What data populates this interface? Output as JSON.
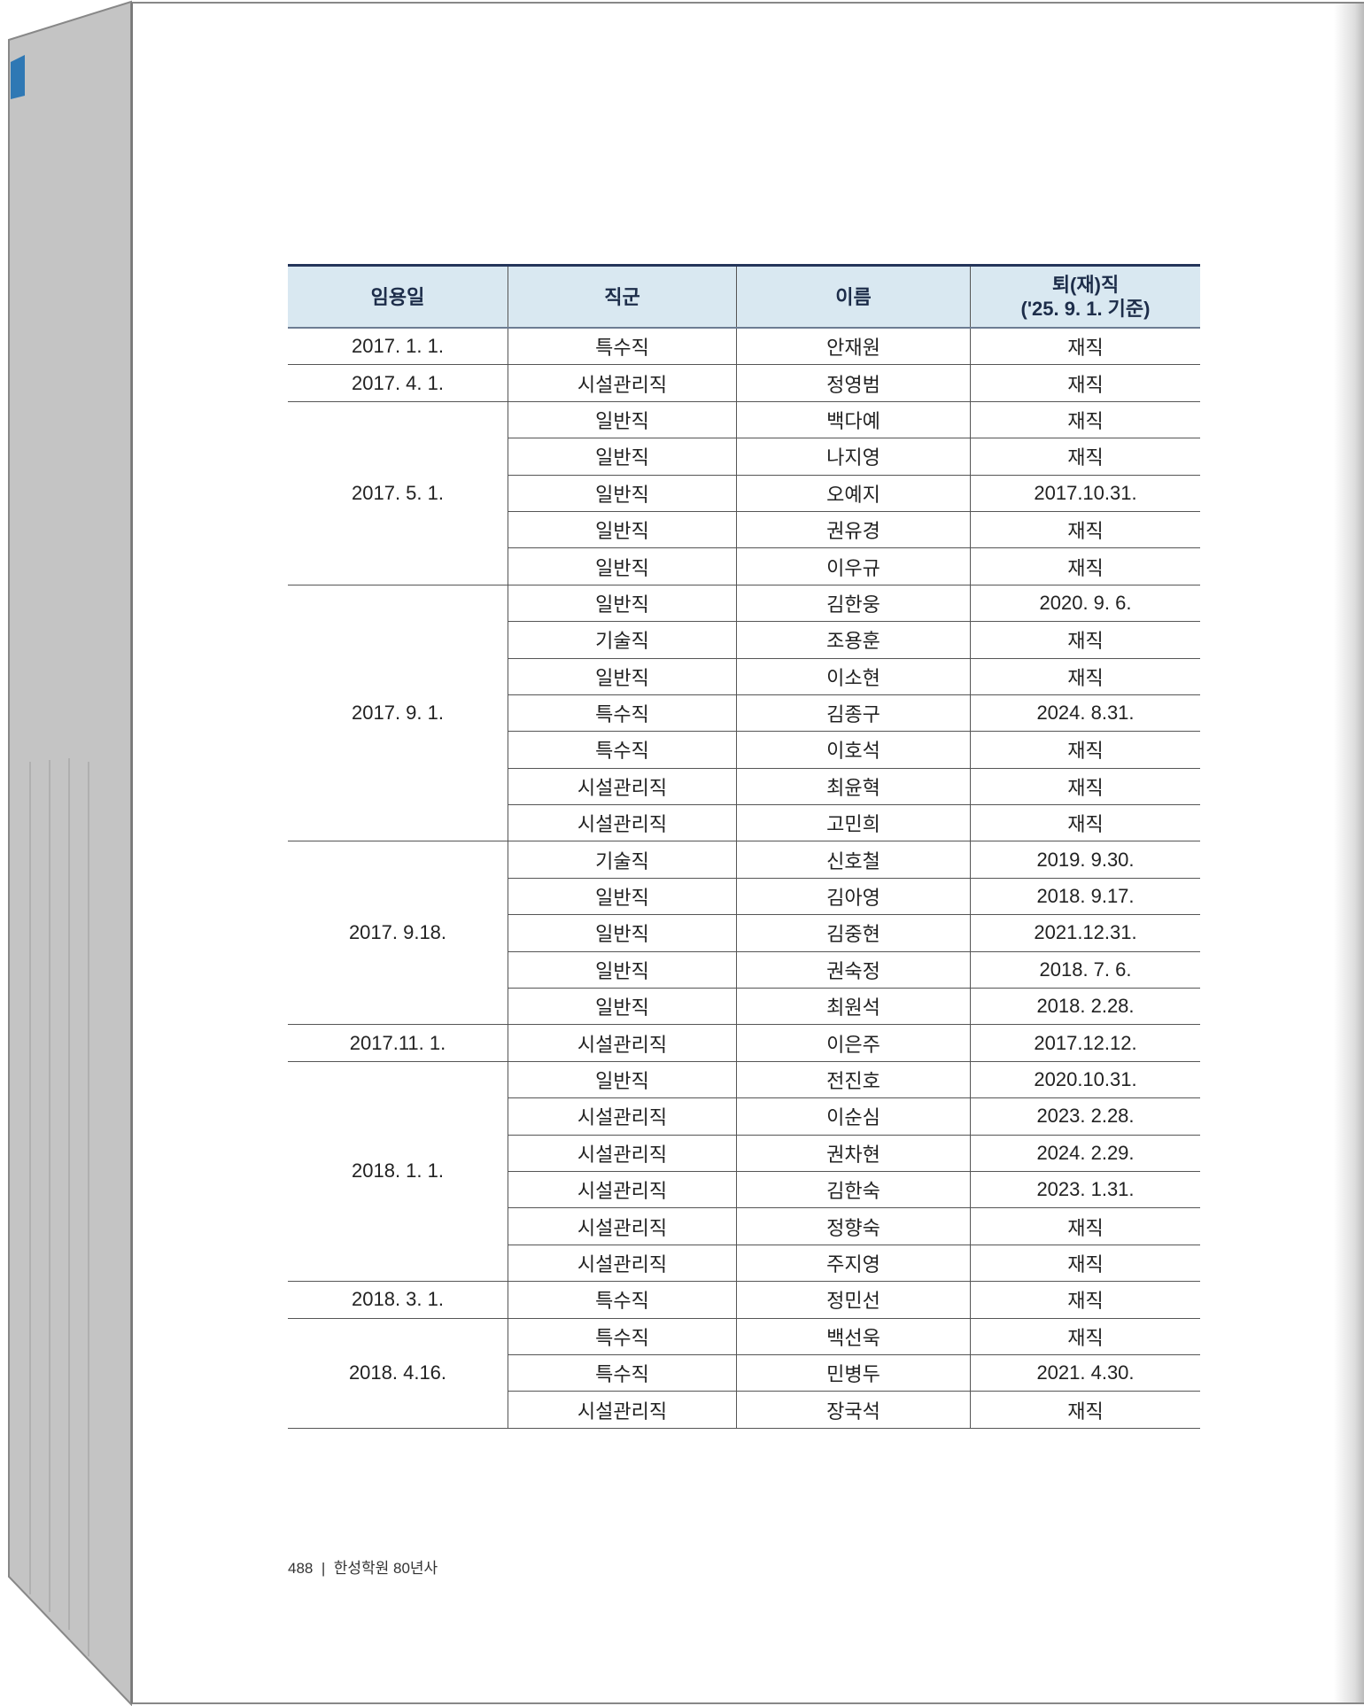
{
  "header": {
    "col1": "임용일",
    "col2": "직군",
    "col3": "이름",
    "col4_line1": "퇴(재)직",
    "col4_line2": "('25. 9. 1. 기준)"
  },
  "groups": [
    {
      "date": "2017. 1. 1.",
      "rows": [
        [
          "특수직",
          "안재원",
          "재직"
        ]
      ]
    },
    {
      "date": "2017. 4. 1.",
      "rows": [
        [
          "시설관리직",
          "정영범",
          "재직"
        ]
      ]
    },
    {
      "date": "2017. 5. 1.",
      "rows": [
        [
          "일반직",
          "백다예",
          "재직"
        ],
        [
          "일반직",
          "나지영",
          "재직"
        ],
        [
          "일반직",
          "오예지",
          "2017.10.31."
        ],
        [
          "일반직",
          "권유경",
          "재직"
        ],
        [
          "일반직",
          "이우규",
          "재직"
        ]
      ]
    },
    {
      "date": "2017. 9. 1.",
      "rows": [
        [
          "일반직",
          "김한웅",
          "2020. 9. 6."
        ],
        [
          "기술직",
          "조용훈",
          "재직"
        ],
        [
          "일반직",
          "이소현",
          "재직"
        ],
        [
          "특수직",
          "김종구",
          "2024. 8.31."
        ],
        [
          "특수직",
          "이호석",
          "재직"
        ],
        [
          "시설관리직",
          "최윤혁",
          "재직"
        ],
        [
          "시설관리직",
          "고민희",
          "재직"
        ]
      ]
    },
    {
      "date": "2017. 9.18.",
      "rows": [
        [
          "기술직",
          "신호철",
          "2019. 9.30."
        ],
        [
          "일반직",
          "김아영",
          "2018. 9.17."
        ],
        [
          "일반직",
          "김중현",
          "2021.12.31."
        ],
        [
          "일반직",
          "권숙정",
          "2018. 7. 6."
        ],
        [
          "일반직",
          "최원석",
          "2018. 2.28."
        ]
      ]
    },
    {
      "date": "2017.11. 1.",
      "rows": [
        [
          "시설관리직",
          "이은주",
          "2017.12.12."
        ]
      ]
    },
    {
      "date": "2018. 1. 1.",
      "rows": [
        [
          "일반직",
          "전진호",
          "2020.10.31."
        ],
        [
          "시설관리직",
          "이순심",
          "2023. 2.28."
        ],
        [
          "시설관리직",
          "권차현",
          "2024. 2.29."
        ],
        [
          "시설관리직",
          "김한숙",
          "2023. 1.31."
        ],
        [
          "시설관리직",
          "정향숙",
          "재직"
        ],
        [
          "시설관리직",
          "주지영",
          "재직"
        ]
      ]
    },
    {
      "date": "2018. 3. 1.",
      "rows": [
        [
          "특수직",
          "정민선",
          "재직"
        ]
      ]
    },
    {
      "date": "2018. 4.16.",
      "rows": [
        [
          "특수직",
          "백선욱",
          "재직"
        ],
        [
          "특수직",
          "민병두",
          "2021. 4.30."
        ],
        [
          "시설관리직",
          "장국석",
          "재직"
        ]
      ]
    }
  ],
  "footer": {
    "page_number": "488",
    "separator": "|",
    "book_title": "한성학원 80년사"
  }
}
